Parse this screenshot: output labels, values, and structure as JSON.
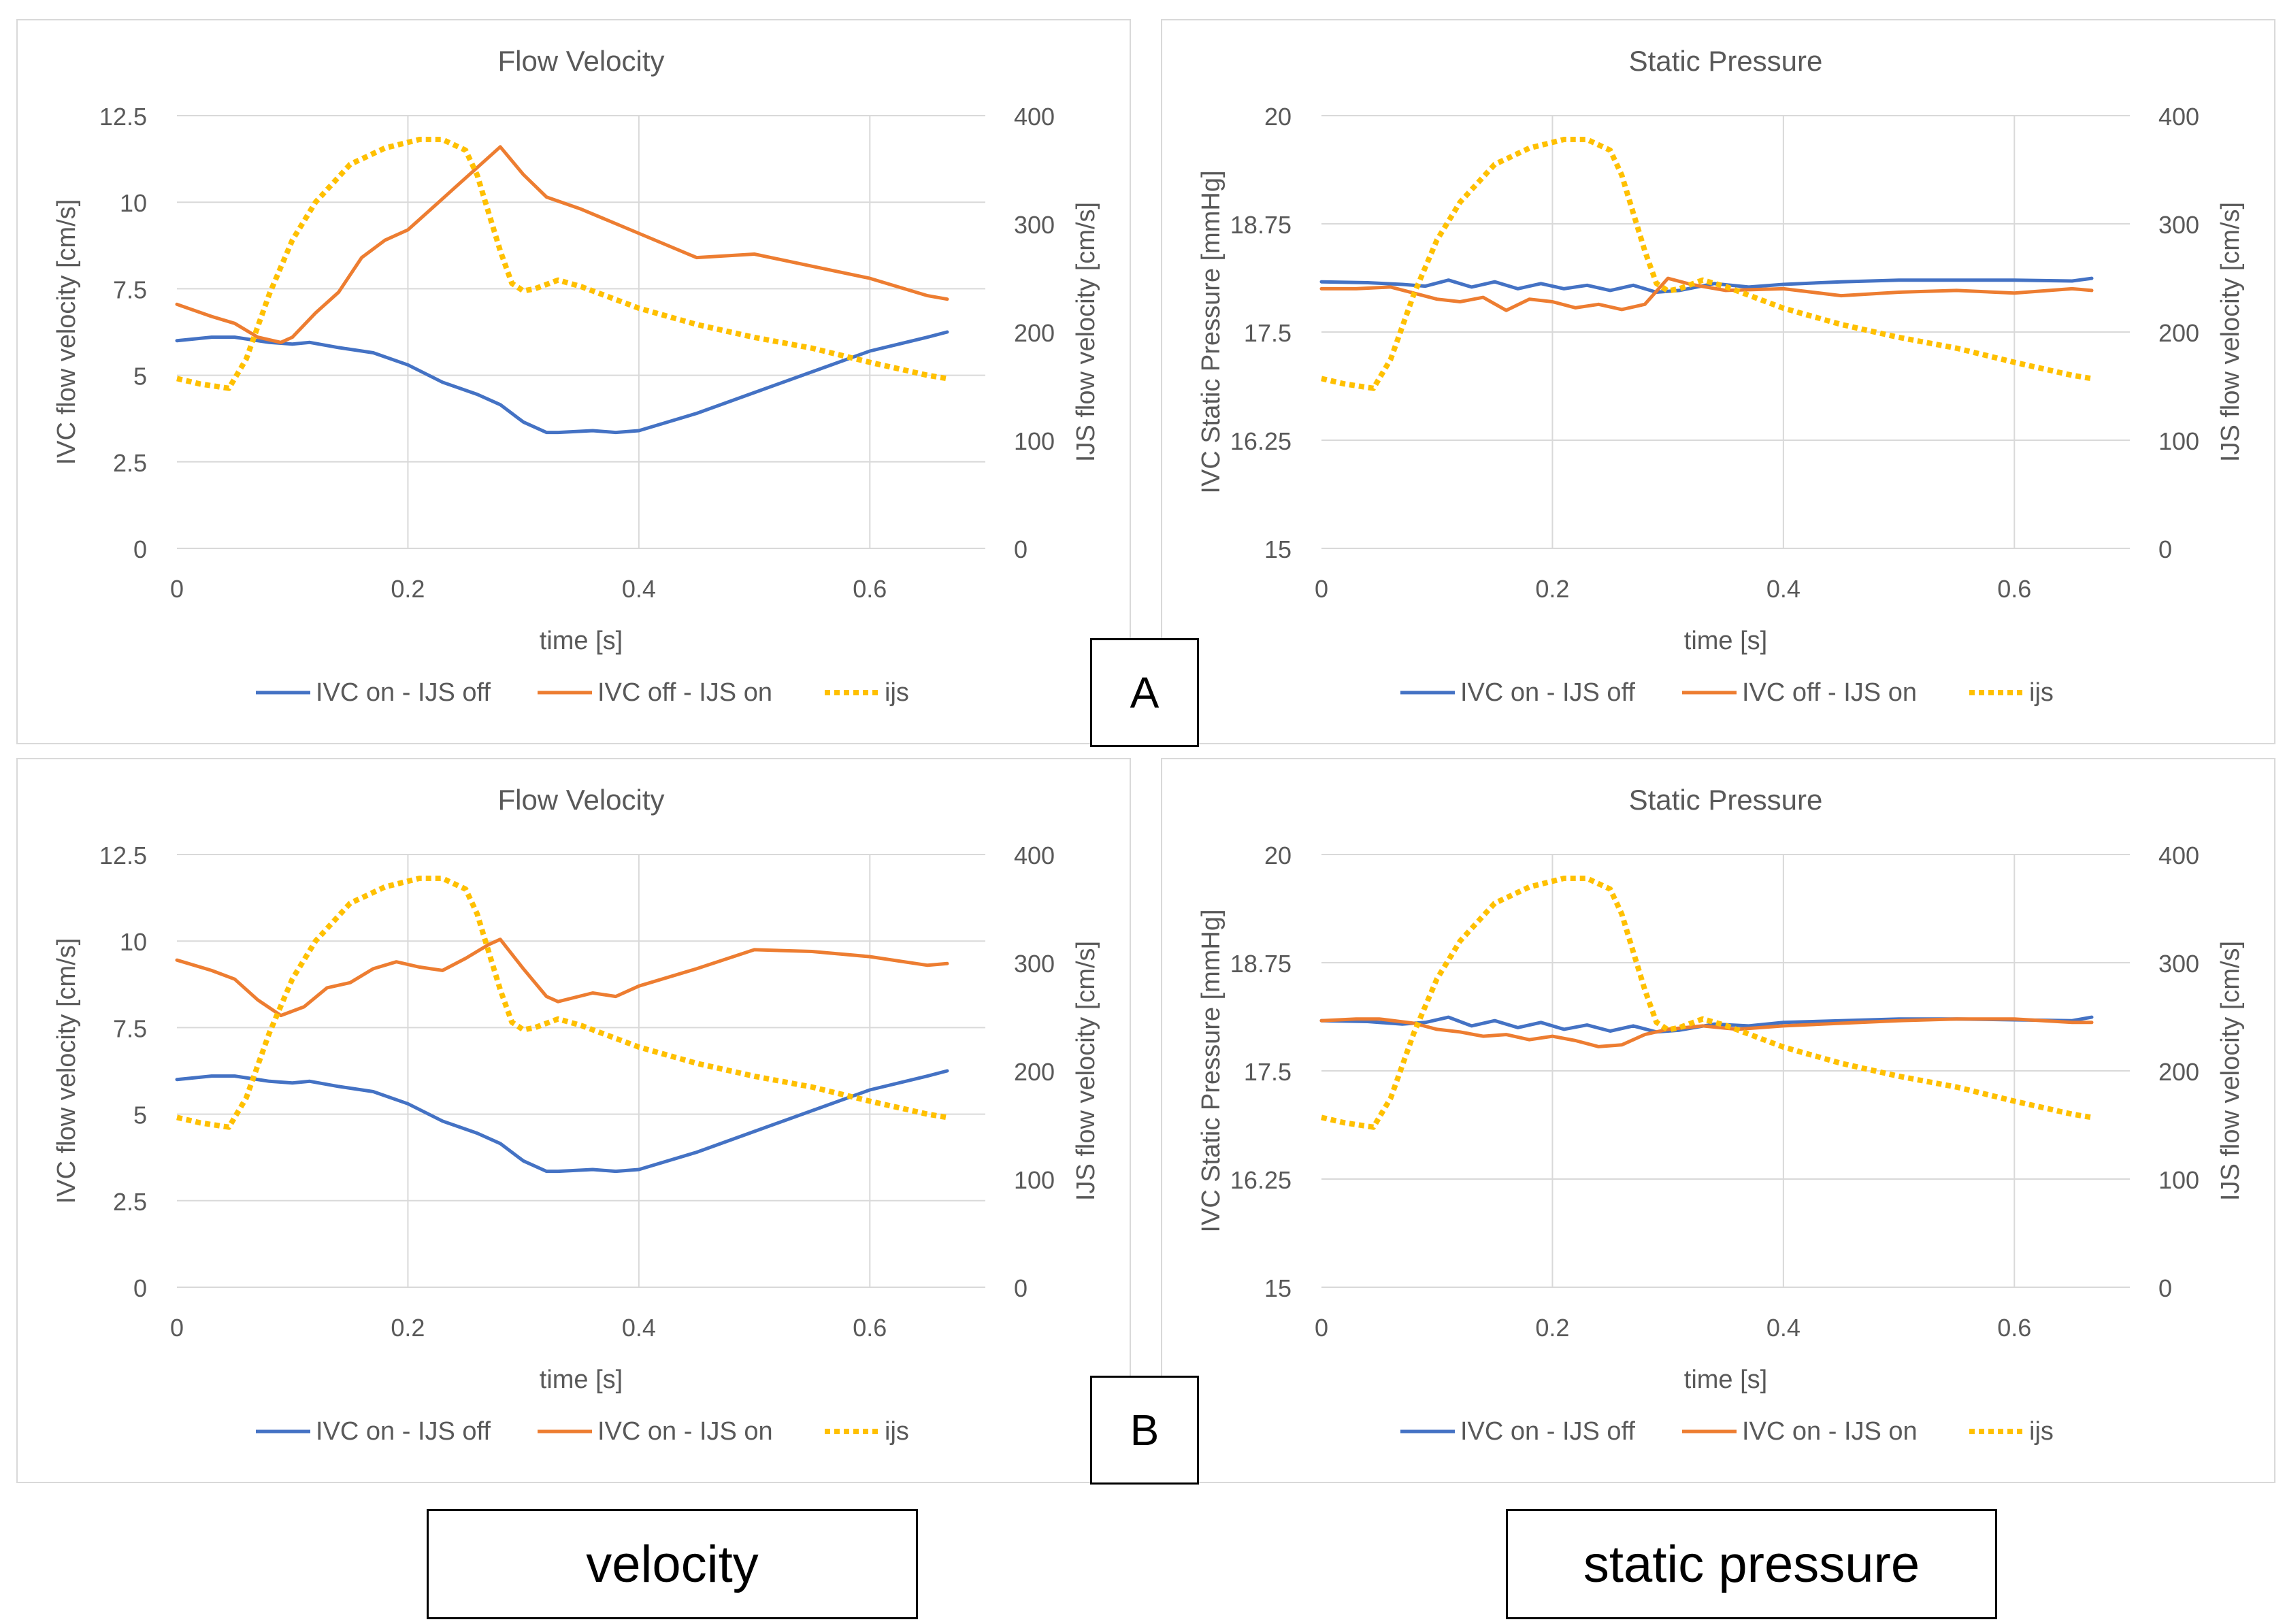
{
  "panel_labels": {
    "A": "A",
    "B": "B"
  },
  "captions": {
    "velocity": "velocity",
    "pressure": "static pressure"
  },
  "colors": {
    "blue": "#4472c4",
    "orange": "#ed7d31",
    "yellow": "#ffc000"
  },
  "charts": {
    "A_velocity": {
      "type": "line",
      "title": "Flow Velocity",
      "xlabel": "time [s]",
      "ylabel": "IVC flow velocity [cm/s]",
      "y2label": "IJS flow velocity [cm/s]",
      "xlim": [
        0,
        0.7
      ],
      "xticks": [
        "0",
        "0.2",
        "0.4",
        "0.6"
      ],
      "ylim": [
        0,
        12.5
      ],
      "yticks": [
        "0",
        "2.5",
        "5",
        "7.5",
        "10",
        "12.5"
      ],
      "y2lim": [
        0,
        400
      ],
      "y2ticks": [
        "0",
        "100",
        "200",
        "300",
        "400"
      ],
      "legend": [
        "IVC on - IJS off",
        "IVC off - IJS on",
        "ijs"
      ]
    },
    "A_pressure": {
      "type": "line",
      "title": "Static Pressure",
      "xlabel": "time [s]",
      "ylabel": "IVC Static Pressure [mmHg]",
      "y2label": "IJS flow velocity [cm/s]",
      "xlim": [
        0,
        0.7
      ],
      "xticks": [
        "0",
        "0.2",
        "0.4",
        "0.6"
      ],
      "ylim": [
        15,
        20
      ],
      "yticks": [
        "15",
        "16.25",
        "17.5",
        "18.75",
        "20"
      ],
      "y2lim": [
        0,
        400
      ],
      "y2ticks": [
        "0",
        "100",
        "200",
        "300",
        "400"
      ],
      "legend": [
        "IVC on - IJS off",
        "IVC off - IJS on",
        "ijs"
      ]
    },
    "B_velocity": {
      "type": "line",
      "title": "Flow Velocity",
      "xlabel": "time [s]",
      "ylabel": "IVC flow velocity [cm/s]",
      "y2label": "IJS flow velocity [cm/s]",
      "xlim": [
        0,
        0.7
      ],
      "xticks": [
        "0",
        "0.2",
        "0.4",
        "0.6"
      ],
      "ylim": [
        0,
        12.5
      ],
      "yticks": [
        "0",
        "2.5",
        "5",
        "7.5",
        "10",
        "12.5"
      ],
      "y2lim": [
        0,
        400
      ],
      "y2ticks": [
        "0",
        "100",
        "200",
        "300",
        "400"
      ],
      "legend": [
        "IVC on - IJS off",
        "IVC on - IJS on",
        "ijs"
      ]
    },
    "B_pressure": {
      "type": "line",
      "title": "Static Pressure",
      "xlabel": "time [s]",
      "ylabel": "IVC Static Pressure [mmHg]",
      "y2label": "IJS flow velocity [cm/s]",
      "xlim": [
        0,
        0.7
      ],
      "xticks": [
        "0",
        "0.2",
        "0.4",
        "0.6"
      ],
      "ylim": [
        15,
        20
      ],
      "yticks": [
        "15",
        "16.25",
        "17.5",
        "18.75",
        "20"
      ],
      "y2lim": [
        0,
        400
      ],
      "y2ticks": [
        "0",
        "100",
        "200",
        "300",
        "400"
      ],
      "legend": [
        "IVC on - IJS off",
        "IVC on - IJS on",
        "ijs"
      ]
    }
  },
  "chart_data": [
    {
      "id": "A_velocity",
      "type": "line",
      "title": "Flow Velocity",
      "xlabel": "time [s]",
      "ylabel": "IVC flow velocity [cm/s]",
      "y2label": "IJS flow velocity [cm/s]",
      "series": [
        {
          "name": "IVC on - IJS off",
          "axis": "left",
          "style": "solid",
          "color": "#4472c4",
          "x": [
            0,
            0.03,
            0.05,
            0.08,
            0.1,
            0.115,
            0.14,
            0.17,
            0.2,
            0.23,
            0.26,
            0.28,
            0.3,
            0.32,
            0.33,
            0.36,
            0.38,
            0.4,
            0.45,
            0.5,
            0.55,
            0.6,
            0.65,
            0.667
          ],
          "y": [
            6.0,
            6.1,
            6.1,
            5.95,
            5.9,
            5.95,
            5.8,
            5.65,
            5.3,
            4.8,
            4.45,
            4.15,
            3.65,
            3.35,
            3.35,
            3.4,
            3.35,
            3.4,
            3.9,
            4.5,
            5.1,
            5.7,
            6.1,
            6.25
          ]
        },
        {
          "name": "IVC off - IJS on",
          "axis": "left",
          "style": "solid",
          "color": "#ed7d31",
          "x": [
            0,
            0.03,
            0.05,
            0.07,
            0.09,
            0.1,
            0.12,
            0.14,
            0.16,
            0.18,
            0.2,
            0.22,
            0.24,
            0.26,
            0.28,
            0.3,
            0.32,
            0.35,
            0.4,
            0.45,
            0.5,
            0.55,
            0.6,
            0.65,
            0.667
          ],
          "y": [
            7.05,
            6.7,
            6.5,
            6.1,
            5.95,
            6.1,
            6.8,
            7.4,
            8.4,
            8.9,
            9.2,
            9.8,
            10.4,
            11.0,
            11.6,
            10.8,
            10.15,
            9.8,
            9.1,
            8.4,
            8.5,
            8.15,
            7.8,
            7.3,
            7.2
          ]
        },
        {
          "name": "ijs",
          "axis": "right",
          "style": "dotted",
          "color": "#ffc000",
          "x": [
            0,
            0.02,
            0.045,
            0.06,
            0.08,
            0.1,
            0.12,
            0.15,
            0.18,
            0.21,
            0.23,
            0.25,
            0.26,
            0.27,
            0.28,
            0.29,
            0.3,
            0.31,
            0.33,
            0.35,
            0.4,
            0.45,
            0.5,
            0.55,
            0.6,
            0.65,
            0.667
          ],
          "y": [
            157,
            152,
            148,
            175,
            235,
            285,
            320,
            355,
            370,
            378,
            378,
            368,
            345,
            310,
            275,
            245,
            238,
            240,
            248,
            242,
            222,
            207,
            195,
            185,
            172,
            160,
            157
          ]
        }
      ]
    },
    {
      "id": "A_pressure",
      "type": "line",
      "title": "Static Pressure",
      "xlabel": "time [s]",
      "ylabel": "IVC Static Pressure [mmHg]",
      "y2label": "IJS flow velocity [cm/s]",
      "series": [
        {
          "name": "IVC on - IJS off",
          "axis": "left",
          "style": "solid",
          "color": "#4472c4",
          "x": [
            0,
            0.04,
            0.07,
            0.09,
            0.11,
            0.13,
            0.15,
            0.17,
            0.19,
            0.21,
            0.23,
            0.25,
            0.27,
            0.29,
            0.31,
            0.34,
            0.37,
            0.4,
            0.45,
            0.5,
            0.55,
            0.6,
            0.65,
            0.667
          ],
          "y": [
            18.08,
            18.07,
            18.05,
            18.03,
            18.1,
            18.02,
            18.08,
            18.0,
            18.06,
            18.0,
            18.04,
            17.98,
            18.04,
            17.96,
            17.98,
            18.06,
            18.02,
            18.05,
            18.08,
            18.1,
            18.1,
            18.1,
            18.09,
            18.12
          ]
        },
        {
          "name": "IVC off - IJS on",
          "axis": "left",
          "style": "solid",
          "color": "#ed7d31",
          "x": [
            0,
            0.03,
            0.06,
            0.08,
            0.1,
            0.12,
            0.14,
            0.16,
            0.18,
            0.2,
            0.22,
            0.24,
            0.26,
            0.28,
            0.3,
            0.32,
            0.35,
            0.4,
            0.45,
            0.5,
            0.55,
            0.6,
            0.65,
            0.667
          ],
          "y": [
            18.0,
            18.0,
            18.02,
            17.95,
            17.88,
            17.85,
            17.9,
            17.75,
            17.88,
            17.85,
            17.78,
            17.82,
            17.76,
            17.82,
            18.12,
            18.05,
            17.98,
            18.0,
            17.92,
            17.96,
            17.98,
            17.95,
            18.0,
            17.98
          ]
        },
        {
          "name": "ijs",
          "axis": "right",
          "style": "dotted",
          "color": "#ffc000",
          "x": [
            0,
            0.02,
            0.045,
            0.06,
            0.08,
            0.1,
            0.12,
            0.15,
            0.18,
            0.21,
            0.23,
            0.25,
            0.26,
            0.27,
            0.28,
            0.29,
            0.3,
            0.31,
            0.33,
            0.35,
            0.4,
            0.45,
            0.5,
            0.55,
            0.6,
            0.65,
            0.667
          ],
          "y": [
            157,
            152,
            148,
            175,
            235,
            285,
            320,
            355,
            370,
            378,
            378,
            368,
            345,
            310,
            275,
            245,
            238,
            240,
            248,
            242,
            222,
            207,
            195,
            185,
            172,
            160,
            157
          ]
        }
      ]
    },
    {
      "id": "B_velocity",
      "type": "line",
      "title": "Flow Velocity",
      "xlabel": "time [s]",
      "ylabel": "IVC flow velocity [cm/s]",
      "y2label": "IJS flow velocity [cm/s]",
      "series": [
        {
          "name": "IVC on - IJS off",
          "axis": "left",
          "style": "solid",
          "color": "#4472c4",
          "x": [
            0,
            0.03,
            0.05,
            0.08,
            0.1,
            0.115,
            0.14,
            0.17,
            0.2,
            0.23,
            0.26,
            0.28,
            0.3,
            0.32,
            0.33,
            0.36,
            0.38,
            0.4,
            0.45,
            0.5,
            0.55,
            0.6,
            0.65,
            0.667
          ],
          "y": [
            6.0,
            6.1,
            6.1,
            5.95,
            5.9,
            5.95,
            5.8,
            5.65,
            5.3,
            4.8,
            4.45,
            4.15,
            3.65,
            3.35,
            3.35,
            3.4,
            3.35,
            3.4,
            3.9,
            4.5,
            5.1,
            5.7,
            6.1,
            6.25
          ]
        },
        {
          "name": "IVC on - IJS on",
          "axis": "left",
          "style": "solid",
          "color": "#ed7d31",
          "x": [
            0,
            0.03,
            0.05,
            0.07,
            0.09,
            0.11,
            0.13,
            0.15,
            0.17,
            0.19,
            0.21,
            0.23,
            0.25,
            0.27,
            0.28,
            0.3,
            0.32,
            0.33,
            0.36,
            0.38,
            0.4,
            0.45,
            0.5,
            0.55,
            0.6,
            0.65,
            0.667
          ],
          "y": [
            9.45,
            9.15,
            8.9,
            8.3,
            7.85,
            8.1,
            8.65,
            8.8,
            9.2,
            9.4,
            9.25,
            9.15,
            9.5,
            9.9,
            10.05,
            9.2,
            8.4,
            8.25,
            8.5,
            8.4,
            8.7,
            9.2,
            9.75,
            9.7,
            9.55,
            9.3,
            9.35
          ]
        },
        {
          "name": "ijs",
          "axis": "right",
          "style": "dotted",
          "color": "#ffc000",
          "x": [
            0,
            0.02,
            0.045,
            0.06,
            0.08,
            0.1,
            0.12,
            0.15,
            0.18,
            0.21,
            0.23,
            0.25,
            0.26,
            0.27,
            0.28,
            0.29,
            0.3,
            0.31,
            0.33,
            0.35,
            0.4,
            0.45,
            0.5,
            0.55,
            0.6,
            0.65,
            0.667
          ],
          "y": [
            157,
            152,
            148,
            175,
            235,
            285,
            320,
            355,
            370,
            378,
            378,
            368,
            345,
            310,
            275,
            245,
            238,
            240,
            248,
            242,
            222,
            207,
            195,
            185,
            172,
            160,
            157
          ]
        }
      ]
    },
    {
      "id": "B_pressure",
      "type": "line",
      "title": "Static Pressure",
      "xlabel": "time [s]",
      "ylabel": "IVC Static Pressure [mmHg]",
      "y2label": "IJS flow velocity [cm/s]",
      "series": [
        {
          "name": "IVC on - IJS off",
          "axis": "left",
          "style": "solid",
          "color": "#4472c4",
          "x": [
            0,
            0.04,
            0.07,
            0.09,
            0.11,
            0.13,
            0.15,
            0.17,
            0.19,
            0.21,
            0.23,
            0.25,
            0.27,
            0.29,
            0.31,
            0.34,
            0.37,
            0.4,
            0.45,
            0.5,
            0.55,
            0.6,
            0.65,
            0.667
          ],
          "y": [
            18.08,
            18.07,
            18.04,
            18.06,
            18.12,
            18.02,
            18.08,
            18.0,
            18.06,
            17.98,
            18.03,
            17.96,
            18.02,
            17.95,
            17.97,
            18.04,
            18.02,
            18.06,
            18.08,
            18.1,
            18.1,
            18.09,
            18.08,
            18.12
          ]
        },
        {
          "name": "IVC on - IJS on",
          "axis": "left",
          "style": "solid",
          "color": "#ed7d31",
          "x": [
            0,
            0.03,
            0.05,
            0.08,
            0.1,
            0.12,
            0.14,
            0.16,
            0.18,
            0.2,
            0.22,
            0.24,
            0.26,
            0.28,
            0.3,
            0.33,
            0.36,
            0.4,
            0.45,
            0.5,
            0.55,
            0.6,
            0.65,
            0.667
          ],
          "y": [
            18.08,
            18.1,
            18.1,
            18.05,
            17.98,
            17.95,
            17.9,
            17.92,
            17.86,
            17.9,
            17.85,
            17.78,
            17.8,
            17.92,
            17.98,
            18.02,
            17.98,
            18.02,
            18.05,
            18.08,
            18.1,
            18.1,
            18.06,
            18.06
          ]
        },
        {
          "name": "ijs",
          "axis": "right",
          "style": "dotted",
          "color": "#ffc000",
          "x": [
            0,
            0.02,
            0.045,
            0.06,
            0.08,
            0.1,
            0.12,
            0.15,
            0.18,
            0.21,
            0.23,
            0.25,
            0.26,
            0.27,
            0.28,
            0.29,
            0.3,
            0.31,
            0.33,
            0.35,
            0.4,
            0.45,
            0.5,
            0.55,
            0.6,
            0.65,
            0.667
          ],
          "y": [
            157,
            152,
            148,
            175,
            235,
            285,
            320,
            355,
            370,
            378,
            378,
            368,
            345,
            310,
            275,
            245,
            238,
            240,
            248,
            242,
            222,
            207,
            195,
            185,
            172,
            160,
            157
          ]
        }
      ]
    }
  ]
}
